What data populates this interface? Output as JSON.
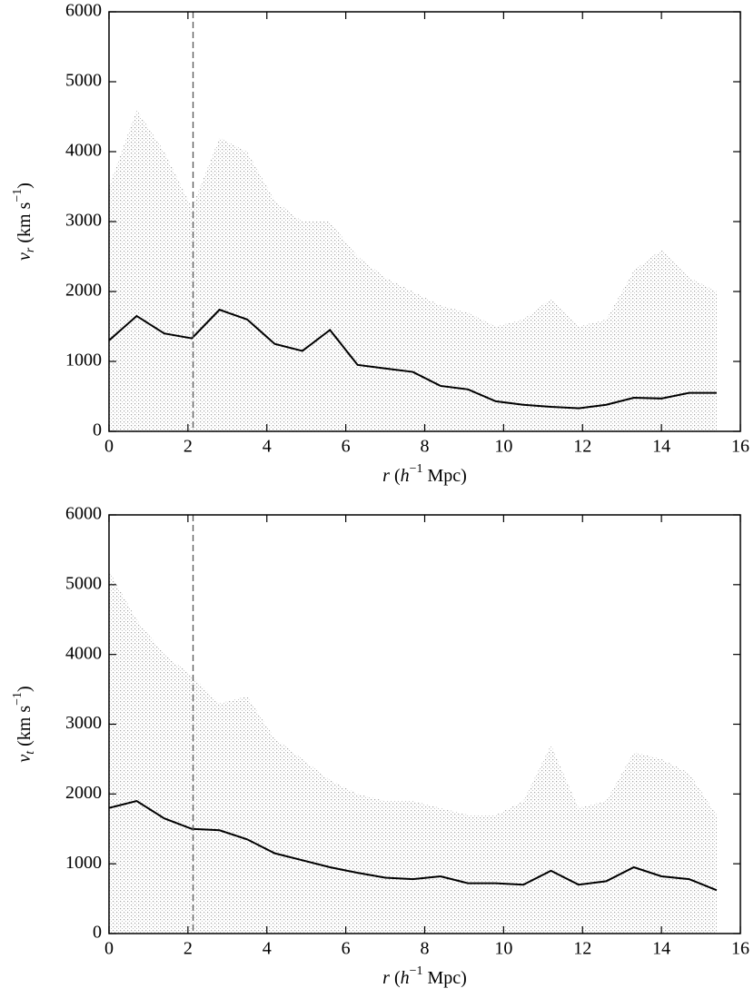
{
  "chart_data": [
    {
      "type": "line",
      "ylabel": [
        "v",
        "r",
        " (km s",
        "−1",
        ")"
      ],
      "xlabel": [
        "r",
        " (",
        "h",
        "−1",
        " Mpc)"
      ],
      "x": [
        0,
        0.7,
        1.4,
        2.1,
        2.8,
        3.5,
        4.2,
        4.9,
        5.6,
        6.3,
        7.0,
        7.7,
        8.4,
        9.1,
        9.8,
        10.5,
        11.2,
        11.9,
        12.6,
        13.3,
        14.0,
        14.7,
        15.4
      ],
      "series": [
        {
          "kind": "area",
          "color": "#aaaaaa",
          "values": [
            3500,
            4600,
            4000,
            3200,
            4200,
            4000,
            3300,
            3000,
            3000,
            2500,
            2200,
            2000,
            1800,
            1700,
            1500,
            1600,
            1900,
            1500,
            1600,
            2300,
            2600,
            2200,
            2000
          ]
        },
        {
          "kind": "line",
          "color": "#000000",
          "values": [
            1300,
            1650,
            1400,
            1330,
            1740,
            1600,
            1250,
            1150,
            1450,
            950,
            900,
            850,
            650,
            600,
            430,
            380,
            350,
            330,
            380,
            480,
            470,
            550,
            550
          ]
        }
      ],
      "vline": 2.13,
      "xlim": [
        0,
        16
      ],
      "xticks": [
        0,
        2,
        4,
        6,
        8,
        10,
        12,
        14,
        16
      ],
      "ylim": [
        0,
        6000
      ],
      "yticks": [
        0,
        1000,
        2000,
        3000,
        4000,
        5000,
        6000
      ]
    },
    {
      "type": "line",
      "ylabel": [
        "v",
        "t",
        " (km s",
        "−1",
        ")"
      ],
      "xlabel": [
        "r",
        " (",
        "h",
        "−1",
        " Mpc)"
      ],
      "x": [
        0,
        0.7,
        1.4,
        2.1,
        2.8,
        3.5,
        4.2,
        4.9,
        5.6,
        6.3,
        7.0,
        7.7,
        8.4,
        9.1,
        9.8,
        10.5,
        11.2,
        11.9,
        12.6,
        13.3,
        14.0,
        14.7,
        15.4
      ],
      "series": [
        {
          "kind": "area",
          "color": "#aaaaaa",
          "values": [
            5200,
            4500,
            4000,
            3700,
            3300,
            3400,
            2800,
            2500,
            2200,
            2000,
            1900,
            1900,
            1800,
            1700,
            1700,
            1900,
            2700,
            1800,
            1900,
            2600,
            2500,
            2300,
            1700
          ]
        },
        {
          "kind": "line",
          "color": "#000000",
          "values": [
            1800,
            1900,
            1650,
            1500,
            1480,
            1350,
            1150,
            1050,
            950,
            870,
            800,
            780,
            820,
            720,
            720,
            700,
            900,
            700,
            750,
            950,
            820,
            780,
            620
          ]
        }
      ],
      "vline": 2.13,
      "xlim": [
        0,
        16
      ],
      "xticks": [
        0,
        2,
        4,
        6,
        8,
        10,
        12,
        14,
        16
      ],
      "ylim": [
        0,
        6000
      ],
      "yticks": [
        0,
        1000,
        2000,
        3000,
        4000,
        5000,
        6000
      ]
    }
  ]
}
